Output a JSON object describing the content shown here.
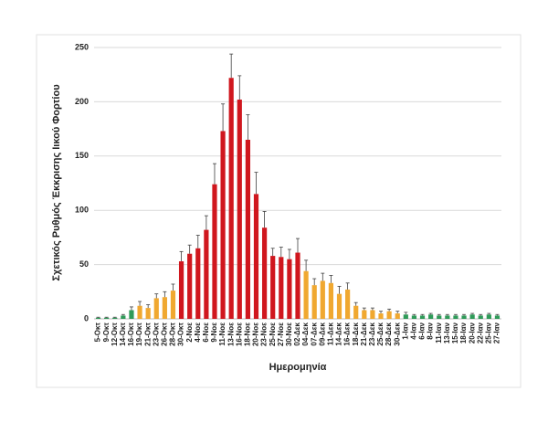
{
  "chart_data": {
    "type": "bar",
    "x_label": "Ημερομηνία",
    "y_label": "Σχετικός Ρυθμός Έκκρισης Ιικού Φορτίου",
    "categories": [
      "5-Οκτ",
      "9-Οκτ",
      "12-Οκτ",
      "14-Οκτ",
      "16-Οκτ",
      "19-Οκτ",
      "21-Οκτ",
      "23-Οκτ",
      "26-Οκτ",
      "28-Οκτ",
      "30-Οκτ",
      "2-Νοε",
      "4-Νοε",
      "6-Νοε",
      "9-Νοε",
      "11-Νοε",
      "13-Νοε",
      "16-Νοε",
      "18-Νοε",
      "20-Νοε",
      "23-Νοε",
      "25-Νοε",
      "27-Νοε",
      "30-Νοε",
      "02-Δεκ",
      "04-Δεκ",
      "07-Δεκ",
      "09-Δεκ",
      "11-Δεκ",
      "14-Δεκ",
      "16-Δεκ",
      "18-Δεκ",
      "21-Δεκ",
      "23-Δεκ",
      "25-Δεκ",
      "28-Δεκ",
      "30-Δεκ",
      "1-Ιαν",
      "4-Ιαν",
      "6-Ιαν",
      "8-Ιαν",
      "11-Ιαν",
      "13-Ιαν",
      "15-Ιαν",
      "18-Ιαν",
      "20-Ιαν",
      "22-Ιαν",
      "25-Ιαν",
      "27-Ιαν"
    ],
    "values": [
      1,
      1,
      1,
      3,
      8,
      12,
      10,
      19,
      20,
      26,
      53,
      60,
      65,
      82,
      124,
      173,
      222,
      202,
      165,
      115,
      84,
      58,
      57,
      55,
      61,
      44,
      31,
      35,
      33,
      23,
      27,
      12,
      8,
      8,
      5,
      7,
      5,
      4,
      3,
      3,
      4,
      3,
      3,
      3,
      3,
      4,
      3,
      4,
      3
    ],
    "errors": [
      0.5,
      0.5,
      0.5,
      1,
      3,
      4,
      3,
      4,
      5,
      6,
      9,
      8,
      12,
      13,
      19,
      25,
      22,
      22,
      23,
      20,
      15,
      7,
      9,
      9,
      13,
      10,
      6,
      7,
      7,
      7,
      6,
      3,
      2,
      2,
      2,
      2,
      2,
      2,
      1,
      1,
      1,
      1,
      1,
      1,
      1,
      1,
      1,
      1,
      1
    ],
    "colors": [
      "#2e9a58",
      "#2e9a58",
      "#2e9a58",
      "#2e9a58",
      "#2e9a58",
      "#f0a830",
      "#f0a830",
      "#f0a830",
      "#f0a830",
      "#f0a830",
      "#d0171e",
      "#d0171e",
      "#d0171e",
      "#d0171e",
      "#d0171e",
      "#d0171e",
      "#d0171e",
      "#d0171e",
      "#d0171e",
      "#d0171e",
      "#d0171e",
      "#d0171e",
      "#d0171e",
      "#d0171e",
      "#d0171e",
      "#f0a830",
      "#f0a830",
      "#f0a830",
      "#f0a830",
      "#f0a830",
      "#f0a830",
      "#f0a830",
      "#f0a830",
      "#f0a830",
      "#f0a830",
      "#f0a830",
      "#f0a830",
      "#2e9a58",
      "#2e9a58",
      "#2e9a58",
      "#2e9a58",
      "#2e9a58",
      "#2e9a58",
      "#2e9a58",
      "#2e9a58",
      "#2e9a58",
      "#2e9a58",
      "#2e9a58",
      "#2e9a58"
    ],
    "ylim": [
      0,
      250
    ],
    "yticks": [
      0,
      50,
      100,
      150,
      200,
      250
    ],
    "grid": true
  }
}
